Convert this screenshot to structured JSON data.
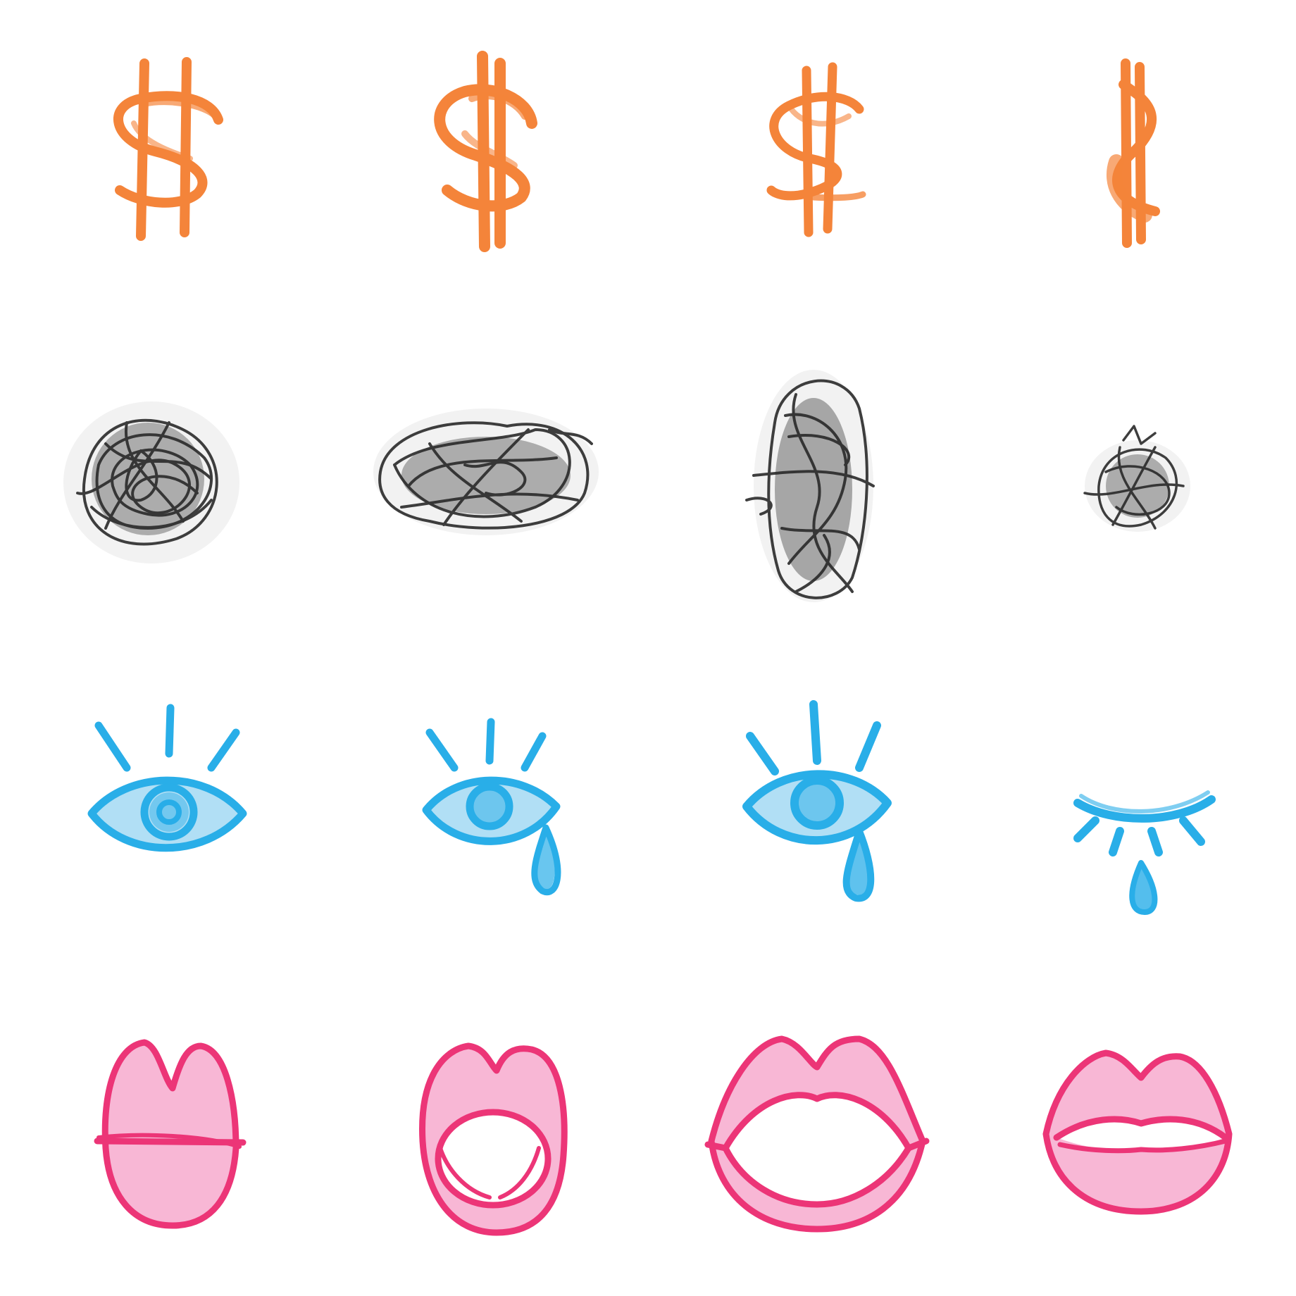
{
  "sheet": {
    "background": "#ffffff",
    "style": "crayon doodle sticker sheet, 4 rows by 4 columns"
  },
  "colors": {
    "orange": "#f47a2a",
    "black": "#2a2a2a",
    "blue": "#29aee8",
    "blue_fill": "#a9dcf4",
    "pink": "#ec3577",
    "pink_fill": "#f8b3d3"
  },
  "rows": [
    {
      "name": "dollar-signs",
      "icon": "dollar-sign-icon",
      "items": [
        {
          "variant": "two-bar dollar sign, narrow S"
        },
        {
          "variant": "two-bar dollar sign, bold S"
        },
        {
          "variant": "two-bar dollar sign, tilted S"
        },
        {
          "variant": "dollar sign seen edge-on"
        }
      ]
    },
    {
      "name": "scribble-clouds",
      "icon": "scribble-icon",
      "items": [
        {
          "variant": "round scribble"
        },
        {
          "variant": "wide scribble"
        },
        {
          "variant": "tall scribble"
        },
        {
          "variant": "small scribble"
        }
      ]
    },
    {
      "name": "eyes",
      "icon": "eye-icon",
      "items": [
        {
          "variant": "open eye with lashes"
        },
        {
          "variant": "open eye with small tear"
        },
        {
          "variant": "open eye with large tear"
        },
        {
          "variant": "closed eye with tear"
        }
      ]
    },
    {
      "name": "mouths",
      "icon": "lips-icon",
      "items": [
        {
          "variant": "closed tall lips"
        },
        {
          "variant": "open round mouth"
        },
        {
          "variant": "wide open mouth"
        },
        {
          "variant": "slightly parted lips"
        }
      ]
    }
  ]
}
